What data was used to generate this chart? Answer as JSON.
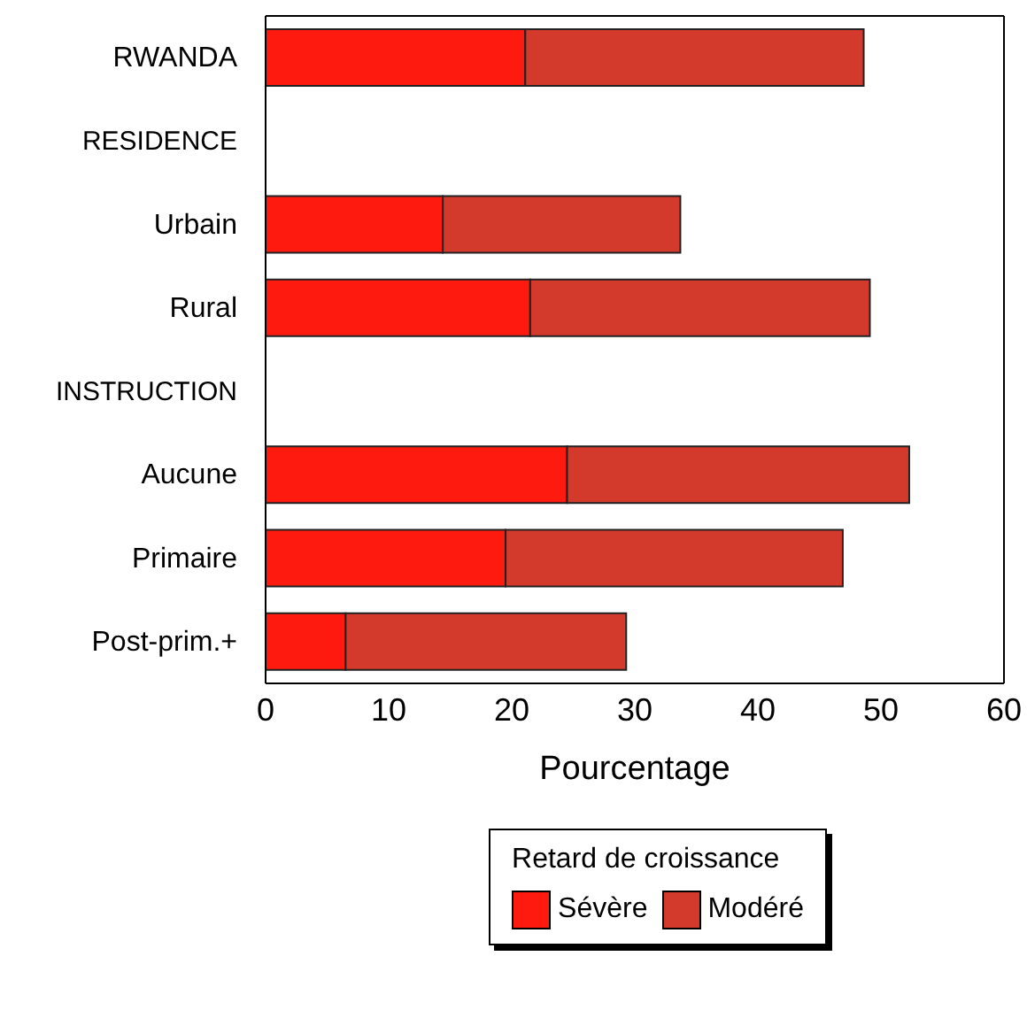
{
  "chart_data": {
    "type": "bar",
    "orientation": "horizontal",
    "stacked": true,
    "xlabel": "Pourcentage",
    "legend_title": "Retard de croissance",
    "legend": "bottom",
    "categories": [
      "RWANDA",
      "RESIDENCE",
      "Urbain",
      "Rural",
      "INSTRUCTION",
      "Aucune",
      "Primaire",
      "Post-prim.+"
    ],
    "series": [
      {
        "name": "Sévère",
        "color": "#ff1a0f",
        "values": [
          21.1,
          null,
          14.4,
          21.5,
          null,
          24.5,
          19.5,
          6.5
        ]
      },
      {
        "name": "Modéré",
        "color": "#d33a2c",
        "values": [
          27.5,
          null,
          19.3,
          27.6,
          null,
          27.8,
          27.4,
          22.8
        ]
      }
    ],
    "xlim": [
      0,
      60
    ],
    "xticks": [
      0,
      10,
      20,
      30,
      40,
      50,
      60
    ],
    "grid": false
  }
}
